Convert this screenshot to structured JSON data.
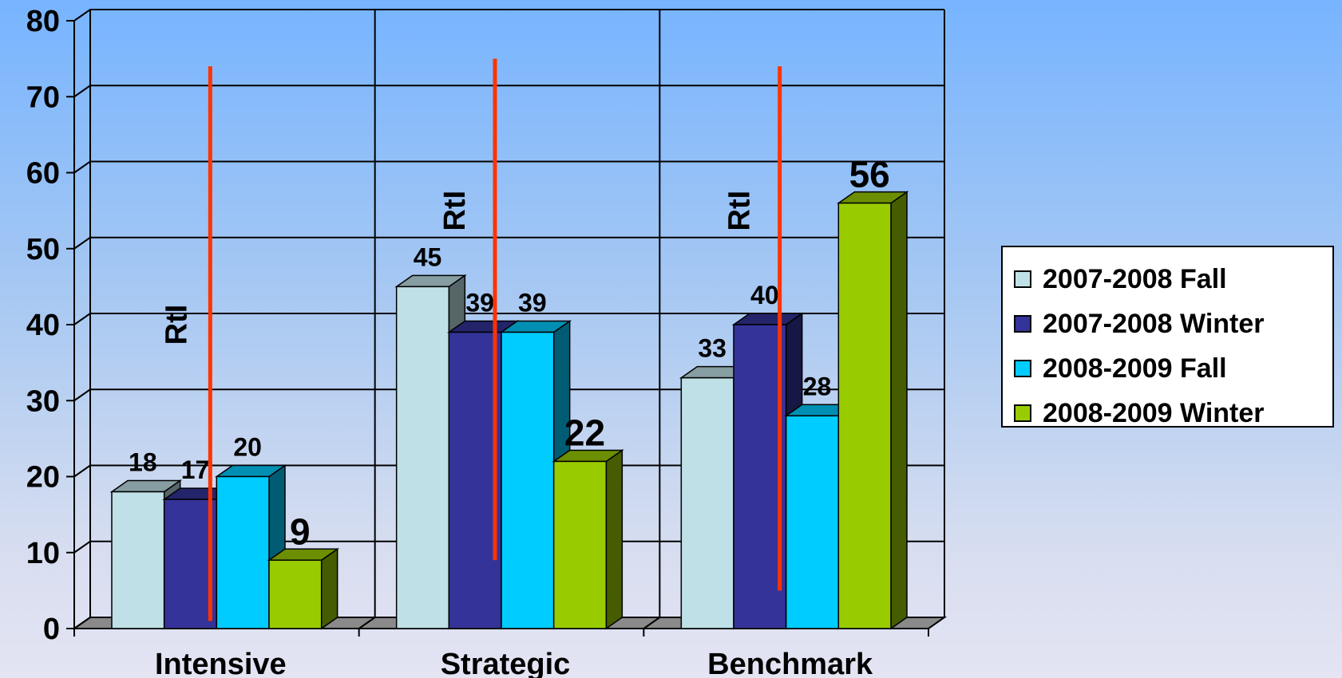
{
  "chart_data": {
    "type": "bar",
    "categories": [
      "Intensive",
      "Strategic",
      "Benchmark"
    ],
    "series": [
      {
        "name": "2007-2008 Fall",
        "values": [
          18,
          45,
          33
        ],
        "color": "#bfe0e6"
      },
      {
        "name": "2007-2008 Winter",
        "values": [
          17,
          39,
          40
        ],
        "color": "#333399"
      },
      {
        "name": "2008-2009 Fall",
        "values": [
          20,
          39,
          28
        ],
        "color": "#00ccff"
      },
      {
        "name": "2008-2009 Winter",
        "values": [
          9,
          22,
          56
        ],
        "color": "#99cc00"
      }
    ],
    "data_labels": [
      [
        "18",
        "45",
        "33"
      ],
      [
        "17",
        "39",
        "40"
      ],
      [
        "20",
        "39",
        "28"
      ],
      [
        "9",
        "22",
        "56"
      ]
    ],
    "ylim": [
      0,
      80
    ],
    "yticks": [
      "0",
      "10",
      "20",
      "30",
      "40",
      "50",
      "60",
      "70",
      "80"
    ],
    "grid": true,
    "legend_position": "right",
    "annotations": [
      {
        "text": "RtI",
        "category": "Intensive",
        "line_from": 1,
        "line_to": 74
      },
      {
        "text": "RtI",
        "category": "Strategic",
        "line_from": 9,
        "line_to": 75
      },
      {
        "text": "RtI",
        "category": "Benchmark",
        "line_from": 5,
        "line_to": 74
      }
    ],
    "annotation_color": "#ff3300",
    "title": "",
    "xlabel": "",
    "ylabel": ""
  }
}
